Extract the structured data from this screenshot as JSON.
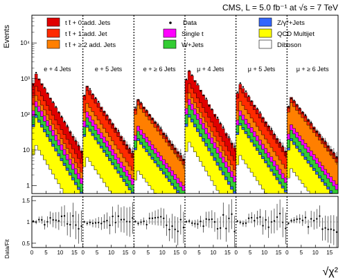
{
  "chart_data": {
    "type": "area",
    "title": "CMS, L = 5.0 fb⁻¹ at √s = 7 TeV",
    "ylabel": "Events",
    "ratio_ylabel": "Data/Fit",
    "xlabel": "√χ²",
    "yscale": "log",
    "ylim": [
      0.6,
      60000
    ],
    "ratio_ylim": [
      0.4,
      1.6
    ],
    "y_ticks": [
      {
        "value": 1,
        "label": "1"
      },
      {
        "value": 10,
        "label": "10"
      },
      {
        "value": 100,
        "label": "10²"
      },
      {
        "value": 1000,
        "label": "10³"
      },
      {
        "value": 10000,
        "label": "10⁴"
      }
    ],
    "ratio_ticks": [
      {
        "value": 0.5,
        "label": "0.5"
      },
      {
        "value": 1.0,
        "label": "1"
      },
      {
        "value": 1.5,
        "label": "1.5"
      }
    ],
    "channel_x_ticks": [
      "0",
      "5",
      "10",
      "15"
    ],
    "last_channel_x_ticks": [
      "0",
      "5",
      "10",
      "15"
    ],
    "channels": [
      {
        "label": "e + 4 Jets",
        "total_peak": 1350,
        "bins": 18,
        "decay": 0.31
      },
      {
        "label": "e + 5 Jets",
        "total_peak": 620,
        "bins": 18,
        "decay": 0.27
      },
      {
        "label": "e + ≥ 6 Jets",
        "total_peak": 260,
        "bins": 18,
        "decay": 0.24
      },
      {
        "label": "μ + 4 Jets",
        "total_peak": 1650,
        "bins": 18,
        "decay": 0.31
      },
      {
        "label": "μ + 5 Jets",
        "total_peak": 700,
        "bins": 18,
        "decay": 0.27
      },
      {
        "label": "μ + ≥ 6 Jets",
        "total_peak": 300,
        "bins": 18,
        "decay": 0.24
      }
    ],
    "series": [
      {
        "name": "t t̄ + 0 add. Jets",
        "color": "#e00000",
        "fraction": [
          0.55,
          0.25,
          0.1,
          0.56,
          0.26,
          0.11
        ]
      },
      {
        "name": "t t̄ + 1 add. Jet",
        "color": "#ff2a00",
        "fraction": [
          0.2,
          0.42,
          0.2,
          0.2,
          0.41,
          0.19
        ]
      },
      {
        "name": "t t̄ + ≥ 2 add. Jets",
        "color": "#ff7f00",
        "fraction": [
          0.08,
          0.14,
          0.52,
          0.08,
          0.15,
          0.53
        ]
      },
      {
        "name": "Single t",
        "color": "#ff00ff",
        "fraction": [
          0.05,
          0.06,
          0.05,
          0.05,
          0.05,
          0.05
        ]
      },
      {
        "name": "W+Jets",
        "color": "#33cc33",
        "fraction": [
          0.05,
          0.05,
          0.05,
          0.05,
          0.05,
          0.05
        ]
      },
      {
        "name": "Z/γ*+Jets",
        "color": "#3366ff",
        "fraction": [
          0.01,
          0.01,
          0.01,
          0.01,
          0.01,
          0.01
        ]
      },
      {
        "name": "QCD Multijet",
        "color": "#ffff00",
        "fraction": [
          0.05,
          0.06,
          0.06,
          0.04,
          0.06,
          0.05
        ]
      },
      {
        "name": "Diboson",
        "color": "#ffffff",
        "fraction": [
          0.01,
          0.01,
          0.01,
          0.01,
          0.01,
          0.01
        ]
      }
    ],
    "data_marker_label": "Data"
  }
}
